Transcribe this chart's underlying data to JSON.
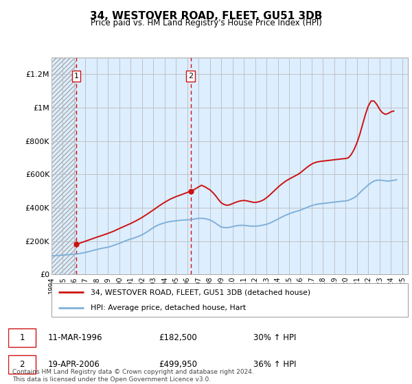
{
  "title": "34, WESTOVER ROAD, FLEET, GU51 3DB",
  "subtitle": "Price paid vs. HM Land Registry's House Price Index (HPI)",
  "background_color": "#ffffff",
  "plot_bg_color": "#ddeeff",
  "grid_color": "#bbbbbb",
  "ylim": [
    0,
    1300000
  ],
  "yticks": [
    0,
    200000,
    400000,
    600000,
    800000,
    1000000,
    1200000
  ],
  "ytick_labels": [
    "£0",
    "£200K",
    "£400K",
    "£600K",
    "£800K",
    "£1M",
    "£1.2M"
  ],
  "xmin_year": 1994.0,
  "xmax_year": 2025.5,
  "xticks": [
    1994,
    1995,
    1996,
    1997,
    1998,
    1999,
    2000,
    2001,
    2002,
    2003,
    2004,
    2005,
    2006,
    2007,
    2008,
    2009,
    2010,
    2011,
    2012,
    2013,
    2014,
    2015,
    2016,
    2017,
    2018,
    2019,
    2020,
    2021,
    2022,
    2023,
    2024,
    2025
  ],
  "sale1_x": 1996.19,
  "sale1_y": 182500,
  "sale1_label": "1",
  "sale1_date": "11-MAR-1996",
  "sale1_price": "£182,500",
  "sale1_hpi": "30% ↑ HPI",
  "sale2_x": 2006.3,
  "sale2_y": 499950,
  "sale2_label": "2",
  "sale2_date": "19-APR-2006",
  "sale2_price": "£499,950",
  "sale2_hpi": "36% ↑ HPI",
  "hpi_line_color": "#7fb0d8",
  "price_line_color": "#cc1111",
  "legend_label_price": "34, WESTOVER ROAD, FLEET, GU51 3DB (detached house)",
  "legend_label_hpi": "HPI: Average price, detached house, Hart",
  "footer": "Contains HM Land Registry data © Crown copyright and database right 2024.\nThis data is licensed under the Open Government Licence v3.0.",
  "hpi_data_x": [
    1994.0,
    1994.25,
    1994.5,
    1994.75,
    1995.0,
    1995.25,
    1995.5,
    1995.75,
    1996.0,
    1996.25,
    1996.5,
    1996.75,
    1997.0,
    1997.25,
    1997.5,
    1997.75,
    1998.0,
    1998.25,
    1998.5,
    1998.75,
    1999.0,
    1999.25,
    1999.5,
    1999.75,
    2000.0,
    2000.25,
    2000.5,
    2000.75,
    2001.0,
    2001.25,
    2001.5,
    2001.75,
    2002.0,
    2002.25,
    2002.5,
    2002.75,
    2003.0,
    2003.25,
    2003.5,
    2003.75,
    2004.0,
    2004.25,
    2004.5,
    2004.75,
    2005.0,
    2005.25,
    2005.5,
    2005.75,
    2006.0,
    2006.25,
    2006.5,
    2006.75,
    2007.0,
    2007.25,
    2007.5,
    2007.75,
    2008.0,
    2008.25,
    2008.5,
    2008.75,
    2009.0,
    2009.25,
    2009.5,
    2009.75,
    2010.0,
    2010.25,
    2010.5,
    2010.75,
    2011.0,
    2011.25,
    2011.5,
    2011.75,
    2012.0,
    2012.25,
    2012.5,
    2012.75,
    2013.0,
    2013.25,
    2013.5,
    2013.75,
    2014.0,
    2014.25,
    2014.5,
    2014.75,
    2015.0,
    2015.25,
    2015.5,
    2015.75,
    2016.0,
    2016.25,
    2016.5,
    2016.75,
    2017.0,
    2017.25,
    2017.5,
    2017.75,
    2018.0,
    2018.25,
    2018.5,
    2018.75,
    2019.0,
    2019.25,
    2019.5,
    2019.75,
    2020.0,
    2020.25,
    2020.5,
    2020.75,
    2021.0,
    2021.25,
    2021.5,
    2021.75,
    2022.0,
    2022.25,
    2022.5,
    2022.75,
    2023.0,
    2023.25,
    2023.5,
    2023.75,
    2024.0,
    2024.25,
    2024.5
  ],
  "hpi_data_y": [
    112000,
    113000,
    114000,
    115000,
    116000,
    118000,
    119000,
    121000,
    122000,
    124000,
    126000,
    129000,
    133000,
    137000,
    141000,
    146000,
    150000,
    154000,
    158000,
    161000,
    164000,
    169000,
    175000,
    181000,
    187000,
    194000,
    201000,
    207000,
    213000,
    218000,
    224000,
    231000,
    238000,
    248000,
    258000,
    270000,
    281000,
    291000,
    299000,
    305000,
    310000,
    315000,
    318000,
    320000,
    322000,
    324000,
    326000,
    327000,
    328000,
    329000,
    331000,
    334000,
    337000,
    337000,
    336000,
    332000,
    327000,
    319000,
    308000,
    296000,
    285000,
    282000,
    281000,
    283000,
    287000,
    291000,
    294000,
    295000,
    295000,
    293000,
    291000,
    290000,
    290000,
    291000,
    294000,
    297000,
    301000,
    307000,
    315000,
    323000,
    332000,
    341000,
    349000,
    357000,
    364000,
    370000,
    376000,
    381000,
    386000,
    393000,
    400000,
    407000,
    413000,
    418000,
    422000,
    424000,
    426000,
    428000,
    430000,
    432000,
    434000,
    436000,
    438000,
    440000,
    441000,
    445000,
    452000,
    461000,
    473000,
    490000,
    507000,
    522000,
    537000,
    550000,
    560000,
    565000,
    566000,
    564000,
    562000,
    560000,
    562000,
    565000,
    568000
  ],
  "price_data_x": [
    1996.19,
    1996.5,
    1997.0,
    1997.5,
    1998.0,
    1998.5,
    1999.0,
    1999.5,
    2000.0,
    2000.5,
    2001.0,
    2001.5,
    2002.0,
    2002.5,
    2003.0,
    2003.5,
    2004.0,
    2004.5,
    2005.0,
    2005.5,
    2006.0,
    2006.3,
    2006.5,
    2007.0,
    2007.25,
    2007.5,
    2007.75,
    2008.0,
    2008.25,
    2008.5,
    2008.75,
    2009.0,
    2009.25,
    2009.5,
    2009.75,
    2010.0,
    2010.25,
    2010.5,
    2010.75,
    2011.0,
    2011.25,
    2011.5,
    2011.75,
    2012.0,
    2012.25,
    2012.5,
    2012.75,
    2013.0,
    2013.25,
    2013.5,
    2013.75,
    2014.0,
    2014.25,
    2014.5,
    2014.75,
    2015.0,
    2015.25,
    2015.5,
    2015.75,
    2016.0,
    2016.25,
    2016.5,
    2016.75,
    2017.0,
    2017.25,
    2017.5,
    2017.75,
    2018.0,
    2018.25,
    2018.5,
    2018.75,
    2019.0,
    2019.25,
    2019.5,
    2019.75,
    2020.0,
    2020.25,
    2020.5,
    2020.75,
    2021.0,
    2021.25,
    2021.5,
    2021.75,
    2022.0,
    2022.25,
    2022.5,
    2022.75,
    2023.0,
    2023.25,
    2023.5,
    2023.75,
    2024.0,
    2024.25
  ],
  "price_data_y": [
    182500,
    188000,
    200000,
    212000,
    224000,
    235000,
    247000,
    260000,
    276000,
    291000,
    306000,
    323000,
    342000,
    364000,
    387000,
    411000,
    433000,
    452000,
    467000,
    479000,
    492000,
    499950,
    505000,
    525000,
    535000,
    528000,
    518000,
    508000,
    492000,
    473000,
    450000,
    430000,
    420000,
    415000,
    418000,
    425000,
    432000,
    438000,
    442000,
    444000,
    442000,
    438000,
    434000,
    432000,
    435000,
    440000,
    448000,
    460000,
    474000,
    490000,
    506000,
    522000,
    537000,
    550000,
    562000,
    572000,
    581000,
    590000,
    599000,
    610000,
    624000,
    638000,
    651000,
    662000,
    670000,
    675000,
    678000,
    680000,
    682000,
    684000,
    686000,
    688000,
    690000,
    692000,
    694000,
    695000,
    700000,
    720000,
    750000,
    790000,
    840000,
    900000,
    960000,
    1010000,
    1040000,
    1040000,
    1020000,
    990000,
    970000,
    960000,
    965000,
    975000,
    980000
  ]
}
